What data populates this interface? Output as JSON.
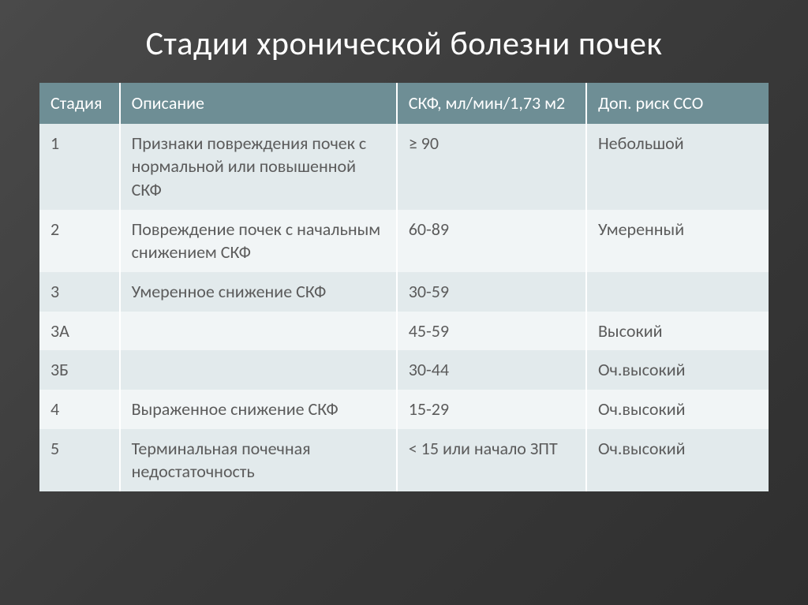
{
  "slide": {
    "title": "Стадии хронической болезни почек",
    "background_gradient": [
      "#4a4a4a",
      "#3a3a3a",
      "#2f2f2f"
    ],
    "title_color": "#ffffff",
    "title_fontsize": 42
  },
  "table": {
    "type": "table",
    "header_bg": "#6e8e95",
    "header_text_color": "#ffffff",
    "row_odd_bg": "#e2eaec",
    "row_even_bg": "#f1f5f6",
    "cell_text_color": "#5b5b5b",
    "border_color": "#ffffff",
    "fontsize": 22,
    "columns": [
      {
        "key": "stage",
        "label": "Стадия",
        "width_pct": 11
      },
      {
        "key": "desc",
        "label": "Описание",
        "width_pct": 38
      },
      {
        "key": "gfr",
        "label": "СКФ, мл/мин/1,73 м2",
        "width_pct": 26
      },
      {
        "key": "risk",
        "label": "Доп. риск ССО",
        "width_pct": 25
      }
    ],
    "rows": [
      {
        "stage": "1",
        "desc": "Признаки повреждения почек с нормальной или повышенной СКФ",
        "gfr": "≥ 90",
        "risk": "Небольшой",
        "stage_indent": false,
        "gfr_indent": 0
      },
      {
        "stage": "2",
        "desc": "Повреждение почек с начальным снижением СКФ",
        "gfr": "60-89",
        "risk": "Умеренный",
        "stage_indent": false,
        "gfr_indent": 0
      },
      {
        "stage": "3",
        "desc": "Умеренное снижение СКФ",
        "gfr": "30-59",
        "risk": "",
        "stage_indent": false,
        "gfr_indent": 0
      },
      {
        "stage": "3А",
        "desc": "",
        "gfr": "45-59",
        "risk": "Высокий",
        "stage_indent": true,
        "gfr_indent": 1
      },
      {
        "stage": "3Б",
        "desc": "",
        "gfr": "30-44",
        "risk": "Оч.высокий",
        "stage_indent": true,
        "gfr_indent": 2
      },
      {
        "stage": "4",
        "desc": "Выраженное снижение СКФ",
        "gfr": "15-29",
        "risk": "Оч.высокий",
        "stage_indent": false,
        "gfr_indent": 0
      },
      {
        "stage": "5",
        "desc": "Терминальная почечная недостаточность",
        "gfr": "< 15 или начало ЗПТ",
        "risk": "Оч.высокий",
        "stage_indent": false,
        "gfr_indent": 0
      }
    ]
  }
}
